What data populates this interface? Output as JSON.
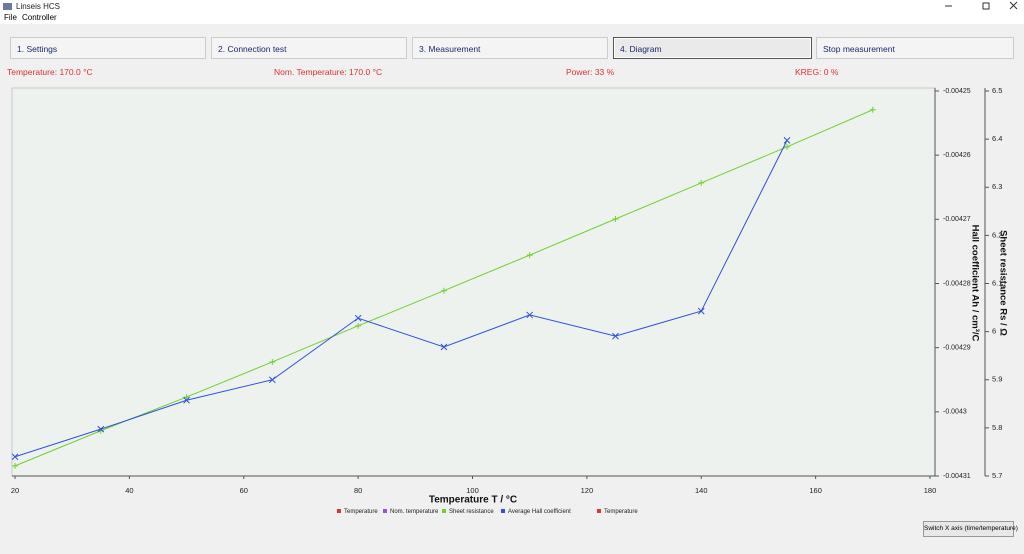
{
  "window": {
    "title": "Linseis HCS"
  },
  "menu": [
    "File",
    "Controller"
  ],
  "tabs": [
    "1. Settings",
    "2. Connection test",
    "3. Measurement",
    "4. Diagram",
    "Stop measurement"
  ],
  "status": [
    "Temperature: 170.0 °C",
    "Nom. Temperature: 170.0 °C",
    "Power: 33 %",
    "KREG: 0 %"
  ],
  "button": "Switch X axis (time/temperature)",
  "chart_data": {
    "type": "line",
    "xlabel": "Temperature T / °C",
    "ylabel": "Hall coefficient Ah / cm³/C",
    "y2label": "Sheet resistance Rs / Ω",
    "xlim": [
      20,
      180
    ],
    "xticks": [
      20,
      40,
      60,
      80,
      100,
      120,
      140,
      160,
      180
    ],
    "ylim": [
      -0.00431,
      -0.00425
    ],
    "yticks": [
      -0.00425,
      -0.00426,
      -0.00427,
      -0.00428,
      -0.00429,
      -0.0043,
      -0.00431
    ],
    "y2lim": [
      5.7,
      6.5
    ],
    "y2ticks": [
      6.5,
      6.4,
      6.3,
      6.2,
      6.1,
      6,
      5.9,
      5.8,
      5.7
    ],
    "series": [
      {
        "name": "Temperature",
        "color": "#e83030",
        "x": [],
        "values": []
      },
      {
        "name": "Nom. temperature",
        "color": "#a050d0",
        "x": [],
        "values": []
      },
      {
        "name": "Sheet resistance",
        "color": "#70d030",
        "axis": "y2",
        "x": [
          20,
          35,
          50,
          65,
          80,
          95,
          110,
          125,
          140,
          155,
          170
        ],
        "values": [
          5.721,
          5.794,
          5.864,
          5.937,
          6.012,
          6.085,
          6.159,
          6.234,
          6.309,
          6.384,
          6.461
        ]
      },
      {
        "name": "Average Hall coefficient",
        "color": "#3050e0",
        "x": [
          20,
          35,
          50,
          65,
          80,
          95,
          110,
          125,
          140,
          155
        ],
        "values": [
          -0.004307,
          -0.0043027,
          -0.0042982,
          -0.004295,
          -0.0042854,
          -0.0042899,
          -0.0042849,
          -0.0042882,
          -0.0042843,
          -0.0042577
        ]
      },
      {
        "name": "Temperature",
        "color": "#e83030",
        "x": [],
        "values": []
      }
    ]
  }
}
